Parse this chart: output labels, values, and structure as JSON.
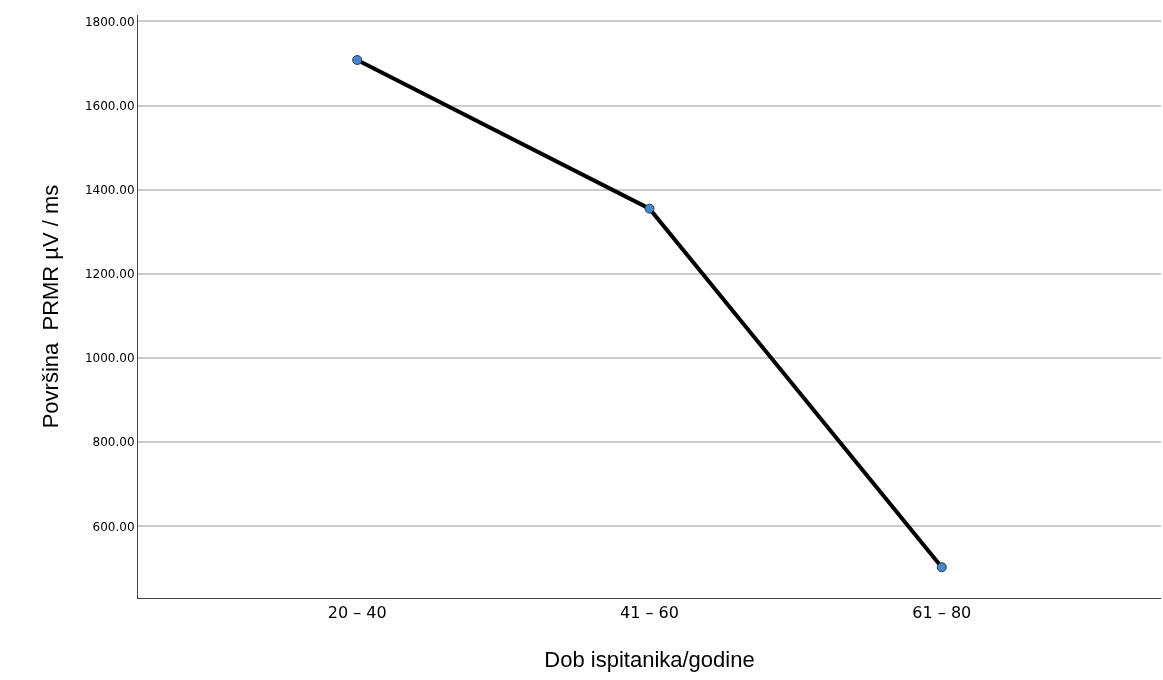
{
  "chart_data": {
    "type": "line",
    "xlabel": "Dob ispitanika/godine",
    "ylabel": "Površina  PRMR µV / ms",
    "categories": [
      "20 – 40",
      "41 – 60",
      "61 – 80"
    ],
    "series": [
      {
        "color": "#000000",
        "values": [
          1708,
          1355,
          503
        ]
      }
    ],
    "ylim": [
      430,
      1815
    ],
    "yticks": [
      {
        "value": 600,
        "label": "600.00"
      },
      {
        "value": 800,
        "label": "800.00"
      },
      {
        "value": 1000,
        "label": "1000.00"
      },
      {
        "value": 1200,
        "label": "1200.00"
      },
      {
        "value": 1400,
        "label": "1400.00"
      },
      {
        "value": 1600,
        "label": "1600.00"
      },
      {
        "value": 1800,
        "label": "1800.00"
      }
    ],
    "grid": "y",
    "marker": "circle",
    "line_style": "solid",
    "legend": false
  }
}
